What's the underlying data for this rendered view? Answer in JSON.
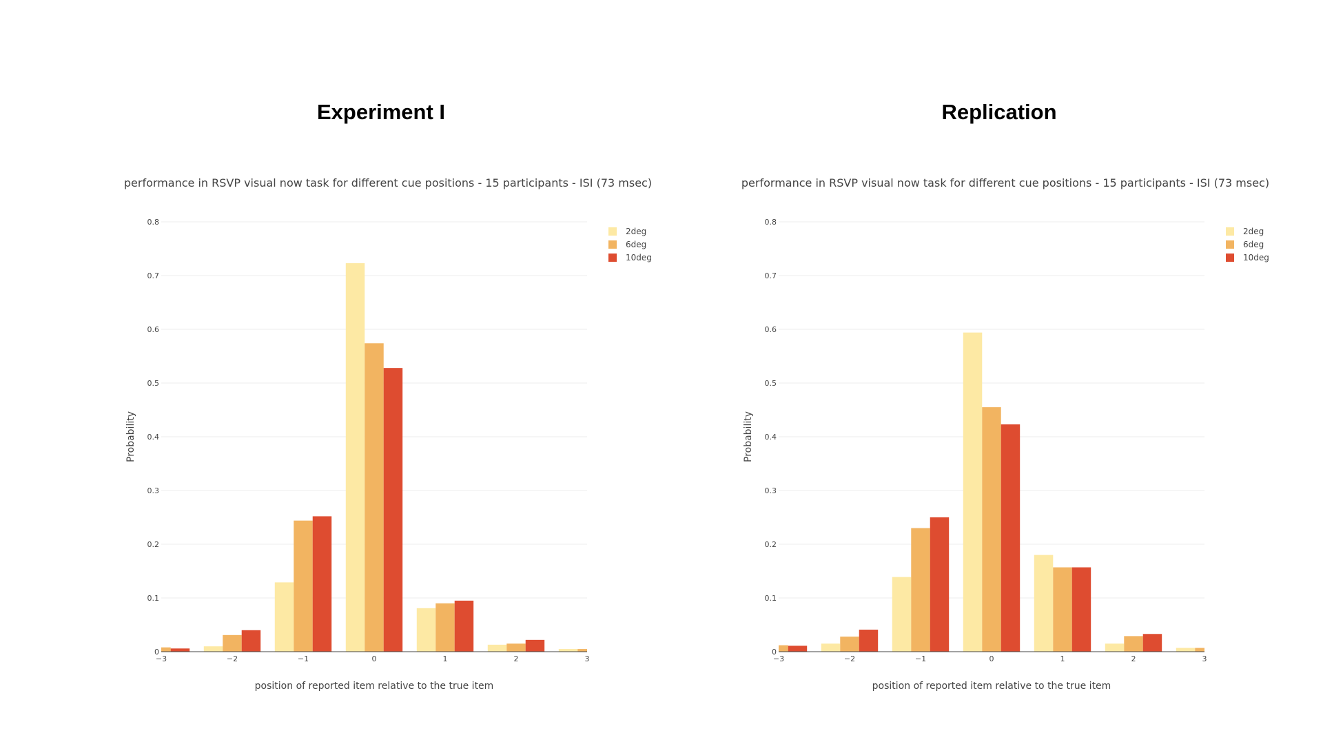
{
  "panels": [
    {
      "heading": "Experiment I"
    },
    {
      "heading": "Replication"
    }
  ],
  "chart_data": [
    {
      "type": "bar",
      "title": "performance in RSVP visual now task for different cue positions - 15 participants - ISI (73 msec)",
      "xlabel": "position of reported item relative to the true item",
      "ylabel": "Probability",
      "x": [
        -3,
        -2,
        -1,
        0,
        1,
        2,
        3
      ],
      "xticks": [
        "−3",
        "−2",
        "−1",
        "0",
        "1",
        "2",
        "3"
      ],
      "ylim": [
        0,
        0.8
      ],
      "yticks": [
        "0",
        "0.1",
        "0.2",
        "0.3",
        "0.4",
        "0.5",
        "0.6",
        "0.7",
        "0.8"
      ],
      "grid": true,
      "legend_position": "top-right",
      "series": [
        {
          "name": "2deg",
          "color": "#fde9a4",
          "values": [
            0.008,
            0.01,
            0.129,
            0.723,
            0.081,
            0.013,
            0.005
          ]
        },
        {
          "name": "6deg",
          "color": "#f2b461",
          "values": [
            0.008,
            0.031,
            0.244,
            0.574,
            0.09,
            0.015,
            0.005
          ]
        },
        {
          "name": "10deg",
          "color": "#de4c30",
          "values": [
            0.006,
            0.04,
            0.252,
            0.528,
            0.095,
            0.022,
            0.0
          ]
        }
      ]
    },
    {
      "type": "bar",
      "title": "performance in RSVP visual now task for different cue positions - 15 participants - ISI (73 msec)",
      "xlabel": "position of reported item relative to the true item",
      "ylabel": "Probability",
      "x": [
        -3,
        -2,
        -1,
        0,
        1,
        2,
        3
      ],
      "xticks": [
        "−3",
        "−2",
        "−1",
        "0",
        "1",
        "2",
        "3"
      ],
      "ylim": [
        0,
        0.8
      ],
      "yticks": [
        "0",
        "0.1",
        "0.2",
        "0.3",
        "0.4",
        "0.5",
        "0.6",
        "0.7",
        "0.8"
      ],
      "grid": true,
      "legend_position": "top-right",
      "series": [
        {
          "name": "2deg",
          "color": "#fde9a4",
          "values": [
            0.0,
            0.015,
            0.139,
            0.594,
            0.18,
            0.015,
            0.007
          ]
        },
        {
          "name": "6deg",
          "color": "#f2b461",
          "values": [
            0.012,
            0.028,
            0.23,
            0.455,
            0.157,
            0.029,
            0.007
          ]
        },
        {
          "name": "10deg",
          "color": "#de4c30",
          "values": [
            0.011,
            0.041,
            0.25,
            0.423,
            0.157,
            0.033,
            0.0
          ]
        }
      ]
    }
  ]
}
